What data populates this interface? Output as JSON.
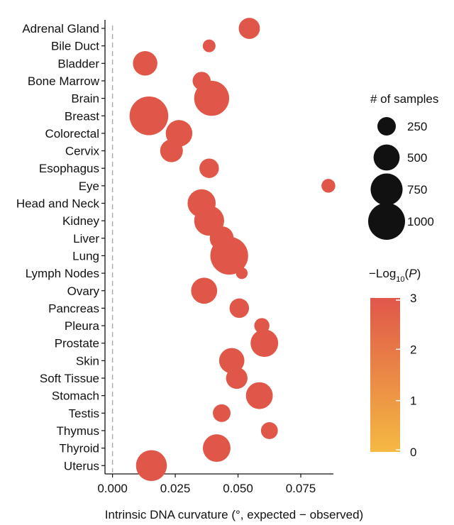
{
  "chart_data": {
    "type": "scatter",
    "xlabel": "Intrinsic DNA curvature (°, expected − observed)",
    "xlim": [
      -0.003,
      0.088
    ],
    "xticks": [
      0.0,
      0.025,
      0.05,
      0.075
    ],
    "xtick_labels": [
      "0.000",
      "0.025",
      "0.050",
      "0.075"
    ],
    "reference_line_x": 0.0,
    "categories": [
      "Adrenal Gland",
      "Bile Duct",
      "Bladder",
      "Bone Marrow",
      "Brain",
      "Breast",
      "Colorectal",
      "Cervix",
      "Esophagus",
      "Eye",
      "Head and Neck",
      "Kidney",
      "Liver",
      "Lung",
      "Lymph Nodes",
      "Ovary",
      "Pancreas",
      "Pleura",
      "Prostate",
      "Skin",
      "Soft Tissue",
      "Stomach",
      "Testis",
      "Thymus",
      "Thyroid",
      "Uterus"
    ],
    "x": [
      0.0545,
      0.0385,
      0.013,
      0.0355,
      0.0395,
      0.0145,
      0.0265,
      0.0235,
      0.0385,
      0.086,
      0.0355,
      0.0385,
      0.0435,
      0.0465,
      0.0515,
      0.0365,
      0.0505,
      0.0595,
      0.0605,
      0.0475,
      0.0495,
      0.0585,
      0.0435,
      0.0625,
      0.0415,
      0.0155
    ],
    "samples": [
      330,
      120,
      440,
      240,
      900,
      1100,
      520,
      380,
      280,
      140,
      580,
      660,
      420,
      1050,
      100,
      500,
      280,
      170,
      560,
      470,
      340,
      530,
      230,
      210,
      560,
      700
    ],
    "neg_log10_p": [
      3,
      3,
      3,
      3,
      3,
      3,
      3,
      3,
      3,
      3,
      3,
      3,
      3,
      3,
      3,
      3,
      3,
      3,
      3,
      3,
      3,
      3,
      3,
      3,
      3,
      3
    ],
    "size_legend": {
      "title": "# of samples",
      "values": [
        250,
        500,
        750,
        1000
      ],
      "labels": [
        "250",
        "500",
        "750",
        "1000"
      ]
    },
    "color_legend": {
      "title_prefix": "−Log",
      "title_sub": "10",
      "title_open": "(",
      "title_var": "P",
      "title_close": ")",
      "range": [
        0,
        3
      ],
      "ticks": [
        0,
        1,
        2,
        3
      ],
      "tick_labels": [
        "0",
        "1",
        "2",
        "3"
      ],
      "color_low": "#f5b942",
      "color_high": "#e0574a"
    },
    "point_color": "#e0574a"
  }
}
